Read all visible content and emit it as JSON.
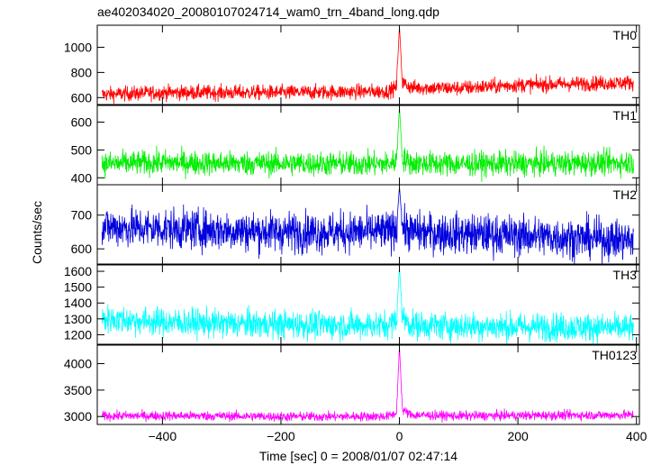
{
  "chart_data": {
    "type": "line",
    "title": "ae402034020_20080107024714_wam0_trn_4band_long.qdp",
    "xlabel": "Time [sec] 0 = 2008/01/07 02:47:14",
    "ylabel": "Counts/sec",
    "xlim": [
      -510,
      405
    ],
    "xticks": [
      -400,
      -200,
      0,
      200,
      400
    ],
    "xtick_labels": [
      "−400",
      "−200",
      "0",
      "200",
      "400"
    ],
    "panels": [
      {
        "name": "TH0",
        "color": "#ff0000",
        "ylim": [
          545,
          1175
        ],
        "yticks": [
          600,
          800,
          1000
        ],
        "series": [
          {
            "name": "TH0",
            "x": [
              -500,
              -400,
              -300,
              -200,
              -100,
              -20,
              -5,
              0,
              5,
              20,
              100,
              200,
              300,
              400
            ],
            "values": [
              625,
              640,
              640,
              640,
              645,
              650,
              680,
              1170,
              720,
              680,
              675,
              700,
              710,
              720
            ],
            "noise": 30
          }
        ]
      },
      {
        "name": "TH1",
        "color": "#00ee00",
        "ylim": [
          375,
          660
        ],
        "yticks": [
          400,
          500,
          600
        ],
        "series": [
          {
            "name": "TH1",
            "x": [
              -500,
              -400,
              -300,
              -200,
              -100,
              -20,
              -5,
              0,
              5,
              20,
              100,
              200,
              300,
              400
            ],
            "values": [
              450,
              455,
              452,
              452,
              450,
              450,
              460,
              655,
              470,
              452,
              450,
              450,
              452,
              455
            ],
            "noise": 22
          }
        ]
      },
      {
        "name": "TH2",
        "color": "#0000dd",
        "ylim": [
          555,
          790
        ],
        "yticks": [
          600,
          700
        ],
        "series": [
          {
            "name": "TH2",
            "x": [
              -500,
              -400,
              -300,
              -200,
              -100,
              -20,
              -5,
              0,
              5,
              20,
              100,
              200,
              300,
              400
            ],
            "values": [
              665,
              660,
              655,
              650,
              650,
              650,
              660,
              785,
              665,
              650,
              645,
              640,
              632,
              625
            ],
            "noise": 30
          }
        ]
      },
      {
        "name": "TH3",
        "color": "#00ffff",
        "ylim": [
          1140,
          1640
        ],
        "yticks": [
          1200,
          1300,
          1400,
          1500,
          1600
        ],
        "series": [
          {
            "name": "TH3",
            "x": [
              -500,
              -400,
              -300,
              -200,
              -100,
              -20,
              -5,
              0,
              5,
              20,
              100,
              200,
              300,
              400
            ],
            "values": [
              1300,
              1280,
              1270,
              1265,
              1260,
              1260,
              1290,
              1630,
              1310,
              1260,
              1255,
              1250,
              1248,
              1240
            ],
            "noise": 45
          }
        ]
      },
      {
        "name": "TH0123",
        "color": "#ff00ff",
        "ylim": [
          2850,
          4350
        ],
        "yticks": [
          3000,
          3500,
          4000
        ],
        "series": [
          {
            "name": "TH0123",
            "x": [
              -500,
              -400,
              -300,
              -200,
              -100,
              -20,
              -5,
              0,
              5,
              20,
              100,
              200,
              300,
              400
            ],
            "values": [
              3010,
              3015,
              3010,
              3000,
              3000,
              3005,
              3060,
              4330,
              3120,
              3030,
              3010,
              3020,
              3025,
              3030
            ],
            "noise": 45
          }
        ]
      }
    ],
    "grid": false,
    "legend": "none"
  }
}
